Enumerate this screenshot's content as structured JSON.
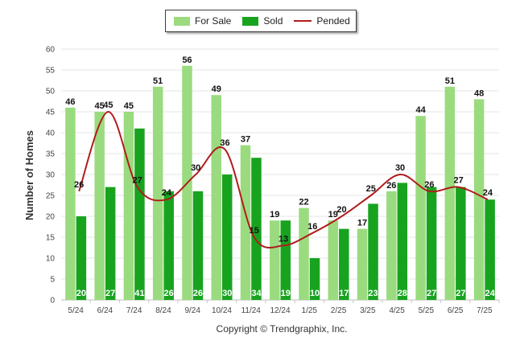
{
  "chart_data": {
    "type": "bar",
    "ylabel": "Number of Homes",
    "ylim": [
      0,
      60
    ],
    "yticks": [
      0,
      5,
      10,
      15,
      20,
      25,
      30,
      35,
      40,
      45,
      50,
      55,
      60
    ],
    "grid": true,
    "legend_position": "top-center",
    "categories": [
      "5/24",
      "6/24",
      "7/24",
      "8/24",
      "9/24",
      "10/24",
      "11/24",
      "12/24",
      "1/25",
      "2/25",
      "3/25",
      "4/25",
      "5/25",
      "6/25",
      "7/25"
    ],
    "series": [
      {
        "name": "For Sale",
        "kind": "bar",
        "color": "#9bdb7f",
        "values": [
          46,
          45,
          45,
          51,
          56,
          49,
          37,
          19,
          22,
          19,
          17,
          26,
          44,
          51,
          48
        ]
      },
      {
        "name": "Sold",
        "kind": "bar",
        "color": "#18a31f",
        "values": [
          20,
          27,
          41,
          26,
          26,
          30,
          34,
          19,
          10,
          17,
          23,
          28,
          27,
          27,
          24
        ]
      },
      {
        "name": "Pended",
        "kind": "line",
        "color": "#b01c1c",
        "values": [
          26,
          45,
          27,
          24,
          30,
          36,
          15,
          13,
          16,
          20,
          25,
          30,
          26,
          27,
          24
        ]
      }
    ]
  },
  "legend": {
    "for_sale": "For Sale",
    "sold": "Sold",
    "pended": "Pended"
  },
  "footer": {
    "copyright": "Copyright © Trendgraphix, Inc."
  }
}
